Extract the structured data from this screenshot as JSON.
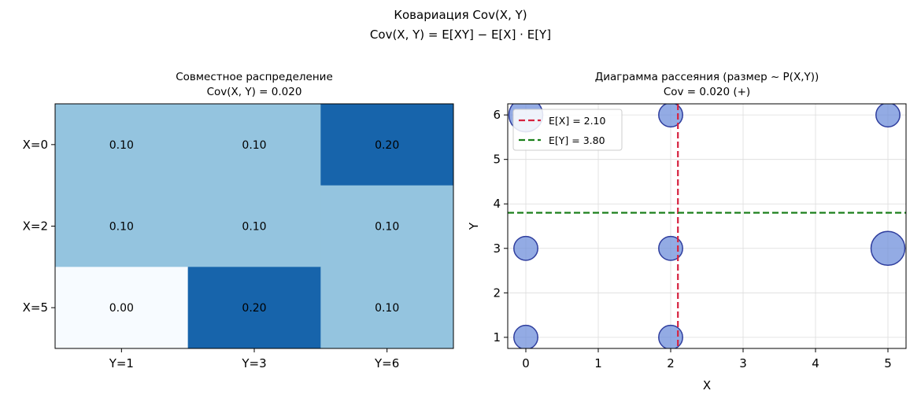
{
  "suptitle_line1": "Ковариация Cov(X, Y)",
  "suptitle_line2": "Cov(X, Y) = E[XY] − E[X] · E[Y]",
  "chart_data": [
    {
      "type": "heatmap",
      "title_line1": "Совместное распределение",
      "title_line2": "Cov(X, Y) = 0.020",
      "row_labels": [
        "X=0",
        "X=2",
        "X=5"
      ],
      "col_labels": [
        "Y=1",
        "Y=3",
        "Y=6"
      ],
      "values": [
        [
          0.1,
          0.1,
          0.2
        ],
        [
          0.1,
          0.1,
          0.1
        ],
        [
          0.0,
          0.2,
          0.1
        ]
      ],
      "cell_labels": [
        [
          "0.10",
          "0.10",
          "0.20"
        ],
        [
          "0.10",
          "0.10",
          "0.10"
        ],
        [
          "0.00",
          "0.20",
          "0.10"
        ]
      ],
      "colormap": "Blues",
      "colors": {
        "low": "#f7fbff",
        "mid": "#94c4df",
        "high": "#1764ab"
      }
    },
    {
      "type": "scatter",
      "title_line1": "Диаграмма рассеяния (размер ~ P(X,Y))",
      "title_line2": "Cov = 0.020 (+)",
      "xlabel": "X",
      "ylabel": "Y",
      "xlim": [
        -0.25,
        5.25
      ],
      "ylim": [
        0.75,
        6.25
      ],
      "xticks": [
        0,
        1,
        2,
        3,
        4,
        5
      ],
      "yticks": [
        1,
        2,
        3,
        4,
        5,
        6
      ],
      "grid": true,
      "points": [
        {
          "x": 0,
          "y": 1,
          "p": 0.1
        },
        {
          "x": 0,
          "y": 3,
          "p": 0.1
        },
        {
          "x": 0,
          "y": 6,
          "p": 0.2
        },
        {
          "x": 2,
          "y": 1,
          "p": 0.1
        },
        {
          "x": 2,
          "y": 3,
          "p": 0.1
        },
        {
          "x": 2,
          "y": 6,
          "p": 0.1
        },
        {
          "x": 5,
          "y": 3,
          "p": 0.2
        },
        {
          "x": 5,
          "y": 6,
          "p": 0.1
        }
      ],
      "point_color": "#6f8fdb",
      "point_edge_color": "#2f3e9e",
      "mean_x": {
        "value": 2.1,
        "label": "E[X] = 2.10",
        "color": "#d6223f"
      },
      "mean_y": {
        "value": 3.8,
        "label": "E[Y] = 3.80",
        "color": "#1a7f1a"
      },
      "legend_loc": "upper left"
    }
  ]
}
